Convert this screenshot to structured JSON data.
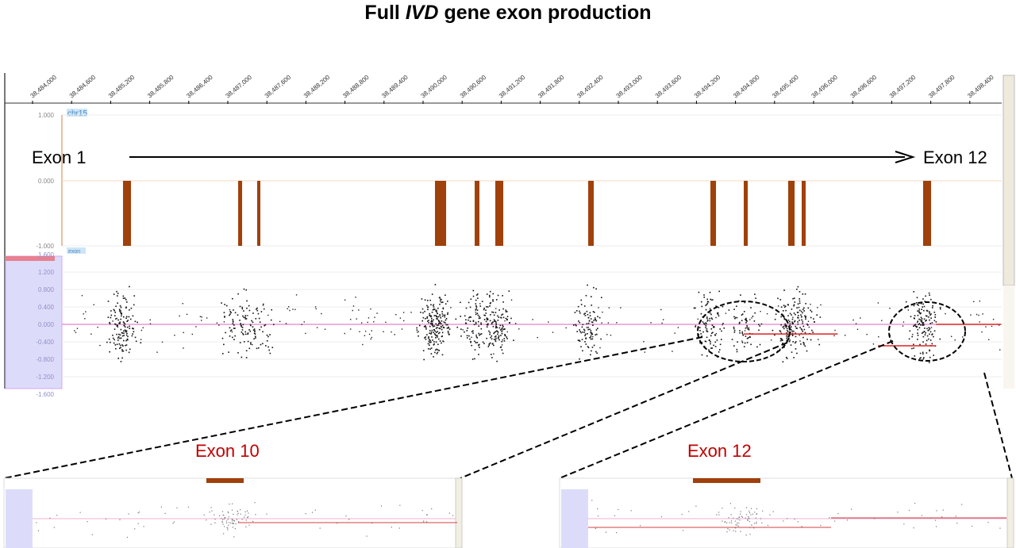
{
  "title": {
    "pre": "Full ",
    "gene": "IVD",
    "post": " gene exon production"
  },
  "axis": {
    "ticks": [
      "38,484,000",
      "38,484,600",
      "38,485,200",
      "38,485,800",
      "38,486,400",
      "38,487,000",
      "38,487,600",
      "38,488,200",
      "38,488,800",
      "38,489,400",
      "38,490,000",
      "38,490,600",
      "38,491,200",
      "38,491,800",
      "38,492,400",
      "38,493,000",
      "38,493,600",
      "38,494,200",
      "38,494,800",
      "38,495,400",
      "38,496,000",
      "38,496,600",
      "38,497,200",
      "38,497,800",
      "38,498,400"
    ],
    "start": 38484000,
    "step": 600
  },
  "track1": {
    "name": "chr15",
    "ymax": "1.000",
    "ymid": "0.000",
    "ymin": "-1.000"
  },
  "track2": {
    "name": "exon",
    "yticks": [
      "1.600",
      "1.200",
      "0.800",
      "0.400",
      "0.000",
      "-0.400",
      "-0.800",
      "-1.200",
      "-1.600"
    ]
  },
  "exons": [
    {
      "start": 38485390,
      "len": 122
    },
    {
      "start": 38487159,
      "len": 61
    },
    {
      "start": 38487451,
      "len": 49
    },
    {
      "start": 38490183,
      "len": 171
    },
    {
      "start": 38490793,
      "len": 73
    },
    {
      "start": 38491110,
      "len": 122
    },
    {
      "start": 38492537,
      "len": 85
    },
    {
      "start": 38494415,
      "len": 85
    },
    {
      "start": 38494927,
      "len": 61
    },
    {
      "start": 38495610,
      "len": 98
    },
    {
      "start": 38495817,
      "len": 61
    },
    {
      "start": 38497683,
      "len": 122
    }
  ],
  "segments": [
    {
      "start": 38494927,
      "end": 38496370,
      "value": -0.22
    },
    {
      "start": 38496990,
      "end": 38497880,
      "value": -0.49
    },
    {
      "start": 38497880,
      "end": 38498880,
      "value": 0.0
    }
  ],
  "annotations": {
    "exon_first": "Exon 1",
    "exon_last": "Exon 12",
    "zoom_left": "Exon 10",
    "zoom_right": "Exon 12"
  },
  "colors": {
    "exon": "#A0400A",
    "segment": "#E02020",
    "label": "#C00000",
    "panel": "#DCDCFA"
  }
}
